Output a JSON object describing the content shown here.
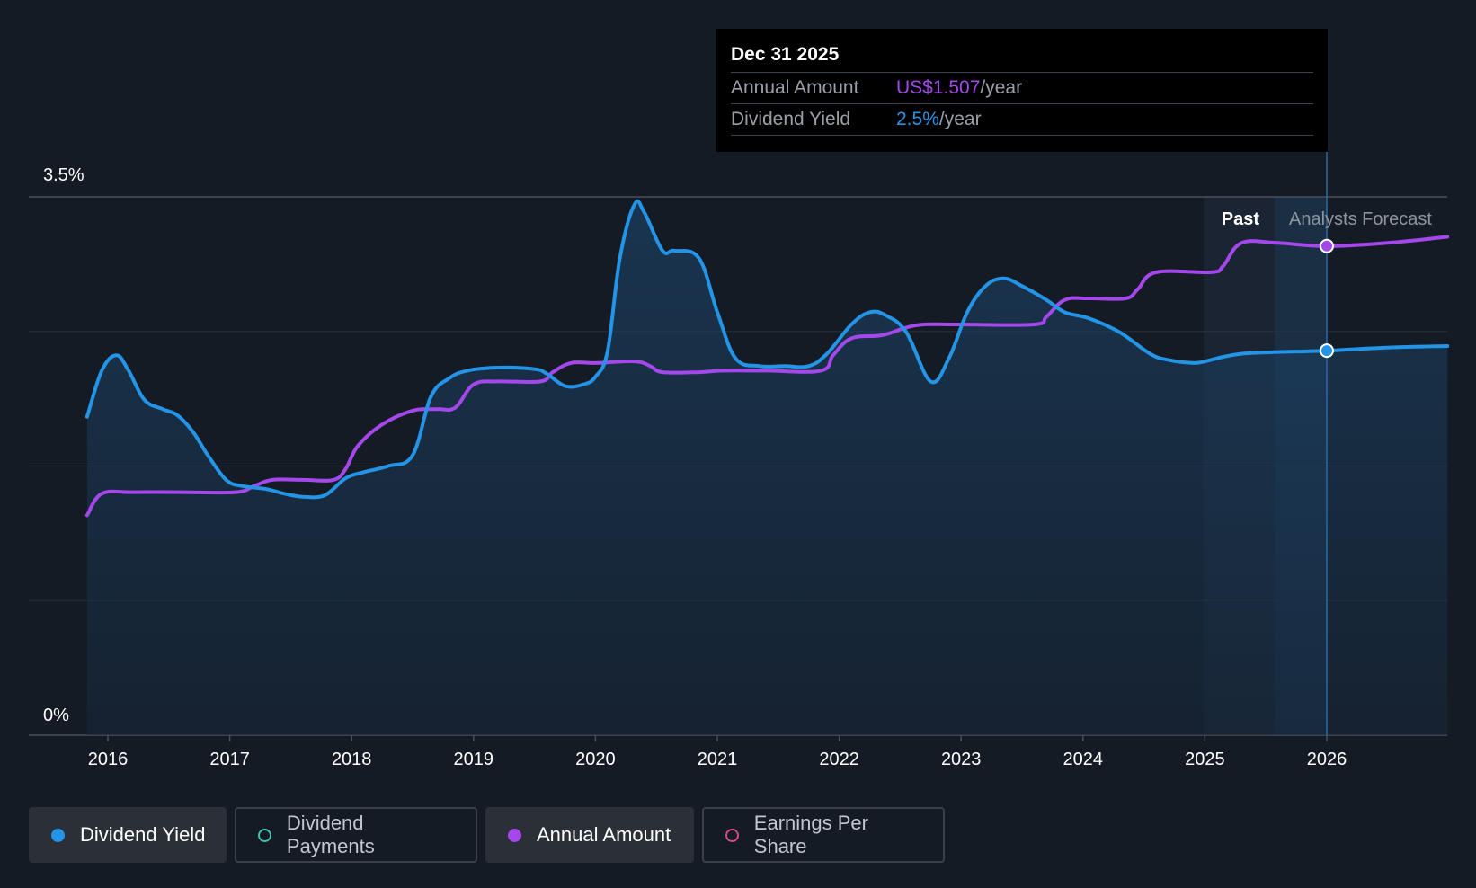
{
  "chart_data": {
    "type": "line",
    "y_axis": {
      "min_label": "0%",
      "max_label": "3.5%",
      "ylim": [
        0,
        3.5
      ],
      "grid": true
    },
    "x_axis": {
      "tick_labels": [
        "2016",
        "2017",
        "2018",
        "2019",
        "2020",
        "2021",
        "2022",
        "2023",
        "2024",
        "2025",
        "2026"
      ]
    },
    "regions": {
      "past_label": "Past",
      "forecast_label": "Analysts Forecast"
    },
    "series": [
      {
        "name": "Dividend Yield",
        "color": "#2394e6",
        "unit": "%",
        "points": [
          [
            2015.83,
            2.07
          ],
          [
            2015.95,
            2.37
          ],
          [
            2016.07,
            2.47
          ],
          [
            2016.17,
            2.37
          ],
          [
            2016.3,
            2.18
          ],
          [
            2016.45,
            2.12
          ],
          [
            2016.57,
            2.08
          ],
          [
            2016.7,
            1.97
          ],
          [
            2016.82,
            1.82
          ],
          [
            2016.97,
            1.66
          ],
          [
            2017.1,
            1.62
          ],
          [
            2017.3,
            1.6
          ],
          [
            2017.45,
            1.57
          ],
          [
            2017.6,
            1.55
          ],
          [
            2017.78,
            1.56
          ],
          [
            2017.95,
            1.67
          ],
          [
            2018.1,
            1.71
          ],
          [
            2018.3,
            1.75
          ],
          [
            2018.5,
            1.82
          ],
          [
            2018.65,
            2.2
          ],
          [
            2018.8,
            2.32
          ],
          [
            2018.95,
            2.37
          ],
          [
            2019.2,
            2.39
          ],
          [
            2019.5,
            2.38
          ],
          [
            2019.6,
            2.35
          ],
          [
            2019.75,
            2.27
          ],
          [
            2019.9,
            2.28
          ],
          [
            2020.0,
            2.33
          ],
          [
            2020.1,
            2.5
          ],
          [
            2020.2,
            3.1
          ],
          [
            2020.32,
            3.45
          ],
          [
            2020.4,
            3.4
          ],
          [
            2020.55,
            3.15
          ],
          [
            2020.65,
            3.15
          ],
          [
            2020.85,
            3.1
          ],
          [
            2021.0,
            2.75
          ],
          [
            2021.15,
            2.45
          ],
          [
            2021.35,
            2.4
          ],
          [
            2021.55,
            2.4
          ],
          [
            2021.75,
            2.4
          ],
          [
            2021.9,
            2.48
          ],
          [
            2022.1,
            2.67
          ],
          [
            2022.25,
            2.75
          ],
          [
            2022.38,
            2.73
          ],
          [
            2022.55,
            2.62
          ],
          [
            2022.75,
            2.3
          ],
          [
            2022.9,
            2.45
          ],
          [
            2023.05,
            2.75
          ],
          [
            2023.2,
            2.92
          ],
          [
            2023.35,
            2.97
          ],
          [
            2023.5,
            2.92
          ],
          [
            2023.7,
            2.83
          ],
          [
            2023.85,
            2.75
          ],
          [
            2024.05,
            2.71
          ],
          [
            2024.3,
            2.62
          ],
          [
            2024.55,
            2.48
          ],
          [
            2024.7,
            2.44
          ],
          [
            2024.9,
            2.42
          ],
          [
            2025.0,
            2.43
          ],
          [
            2025.15,
            2.46
          ],
          [
            2025.3,
            2.48
          ],
          [
            2025.55,
            2.49
          ],
          [
            2026.0,
            2.5
          ],
          [
            2026.5,
            2.52
          ],
          [
            2026.99,
            2.53
          ]
        ]
      },
      {
        "name": "Annual Amount",
        "color": "#a447eb",
        "points": [
          [
            2015.83,
            1.43
          ],
          [
            2015.95,
            1.57
          ],
          [
            2016.2,
            1.58
          ],
          [
            2016.6,
            1.58
          ],
          [
            2017.05,
            1.58
          ],
          [
            2017.2,
            1.62
          ],
          [
            2017.35,
            1.66
          ],
          [
            2017.6,
            1.66
          ],
          [
            2017.85,
            1.66
          ],
          [
            2017.95,
            1.73
          ],
          [
            2018.05,
            1.88
          ],
          [
            2018.25,
            2.02
          ],
          [
            2018.5,
            2.11
          ],
          [
            2018.7,
            2.12
          ],
          [
            2018.85,
            2.13
          ],
          [
            2019.0,
            2.28
          ],
          [
            2019.2,
            2.3
          ],
          [
            2019.55,
            2.3
          ],
          [
            2019.65,
            2.36
          ],
          [
            2019.8,
            2.42
          ],
          [
            2020.0,
            2.42
          ],
          [
            2020.32,
            2.43
          ],
          [
            2020.45,
            2.4
          ],
          [
            2020.55,
            2.36
          ],
          [
            2020.85,
            2.36
          ],
          [
            2021.05,
            2.37
          ],
          [
            2021.4,
            2.37
          ],
          [
            2021.85,
            2.37
          ],
          [
            2021.95,
            2.47
          ],
          [
            2022.1,
            2.58
          ],
          [
            2022.35,
            2.6
          ],
          [
            2022.55,
            2.65
          ],
          [
            2022.7,
            2.67
          ],
          [
            2023.0,
            2.67
          ],
          [
            2023.6,
            2.67
          ],
          [
            2023.7,
            2.72
          ],
          [
            2023.85,
            2.83
          ],
          [
            2024.05,
            2.84
          ],
          [
            2024.35,
            2.84
          ],
          [
            2024.45,
            2.9
          ],
          [
            2024.6,
            3.01
          ],
          [
            2025.05,
            3.01
          ],
          [
            2025.15,
            3.05
          ],
          [
            2025.3,
            3.2
          ],
          [
            2025.6,
            3.2
          ],
          [
            2026.0,
            3.18
          ],
          [
            2026.5,
            3.2
          ],
          [
            2026.99,
            3.24
          ]
        ]
      }
    ],
    "highlight": {
      "x": 2026.0,
      "dividend_yield": 2.5,
      "annual_amount": 3.18
    }
  },
  "tooltip": {
    "date": "Dec 31 2025",
    "rows": [
      {
        "label": "Annual Amount",
        "value": "US$1.507",
        "unit": "/year",
        "color": "#a447eb"
      },
      {
        "label": "Dividend Yield",
        "value": "2.5%",
        "unit": "/year",
        "color": "#2394e6"
      }
    ]
  },
  "legend": [
    {
      "label": "Dividend Yield",
      "color": "#2394e6",
      "active": true,
      "filled": true
    },
    {
      "label": "Dividend Payments",
      "color": "#3fc1b0",
      "active": false,
      "filled": false
    },
    {
      "label": "Annual Amount",
      "color": "#a447eb",
      "active": true,
      "filled": true
    },
    {
      "label": "Earnings Per Share",
      "color": "#d34a86",
      "active": false,
      "filled": false
    }
  ]
}
